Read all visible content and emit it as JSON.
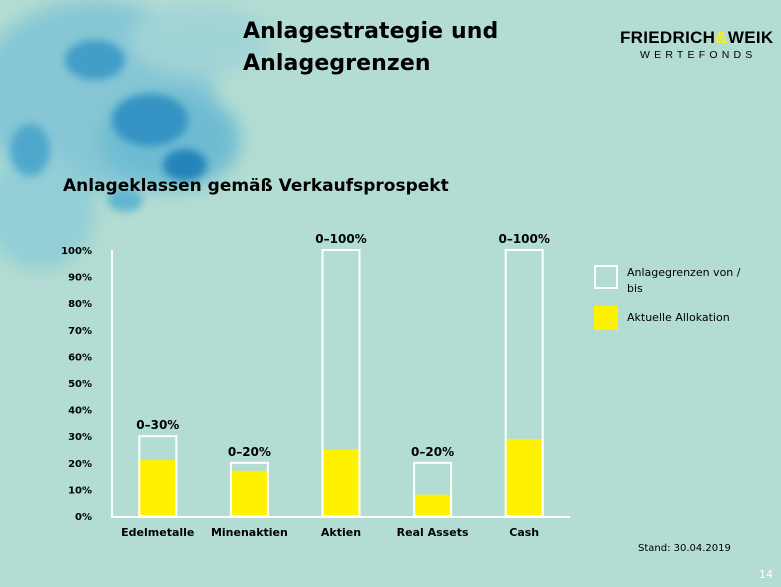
{
  "slide": {
    "title_line1": "Anlagestrategie und",
    "title_line2": "Anlagegrenzen",
    "subtitle": "Anlageklassen gemäß Verkaufsprospekt",
    "stand": "Stand: 30.04.2019",
    "page_number": "14"
  },
  "logo": {
    "name_left": "FRIEDRICH",
    "ampersand": "&",
    "name_right": "WEIK",
    "sub": "WERTEFONDS"
  },
  "legend": {
    "limit_label": "Anlagegrenzen von / bis",
    "alloc_label": "Aktuelle Allokation"
  },
  "colors": {
    "background": "#b3dcd2",
    "allocation": "#fff200",
    "limit_border": "#ffffff"
  },
  "chart_data": {
    "type": "bar",
    "categories": [
      "Edelmetalle",
      "Minenaktien",
      "Aktien",
      "Real Assets",
      "Cash"
    ],
    "series": [
      {
        "name": "Anlagegrenzen von / bis",
        "values": [
          30,
          20,
          100,
          20,
          100
        ]
      },
      {
        "name": "Aktuelle Allokation",
        "values": [
          21,
          17,
          25,
          8,
          29
        ]
      }
    ],
    "range_labels": [
      "0–30%",
      "0–20%",
      "0–100%",
      "0–20%",
      "0–100%"
    ],
    "yticks": [
      "0%",
      "10%",
      "20%",
      "30%",
      "40%",
      "50%",
      "60%",
      "70%",
      "80%",
      "90%",
      "100%"
    ],
    "ylim": [
      0,
      100
    ],
    "xlabel": "",
    "ylabel": "",
    "grid": false,
    "legend_position": "right"
  }
}
